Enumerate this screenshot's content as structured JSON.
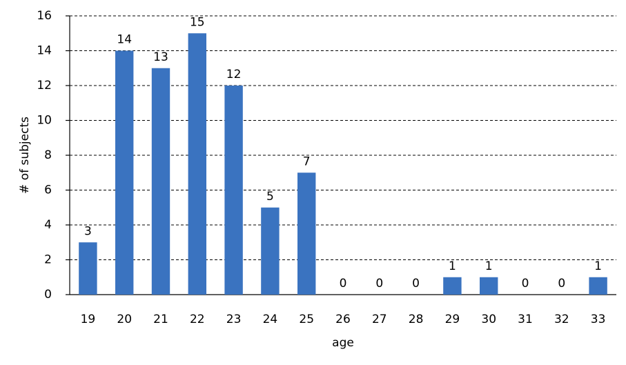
{
  "chart_data": {
    "type": "bar",
    "x_label": "age",
    "y_label": "# of subjects",
    "categories": [
      "19",
      "20",
      "21",
      "22",
      "23",
      "24",
      "25",
      "26",
      "27",
      "28",
      "29",
      "30",
      "31",
      "32",
      "33"
    ],
    "values": [
      3,
      14,
      13,
      15,
      12,
      5,
      7,
      0,
      0,
      0,
      1,
      1,
      0,
      0,
      1
    ],
    "color": "#3a73c0",
    "ylim": [
      0,
      16
    ],
    "yticks": [
      0,
      2,
      4,
      6,
      8,
      10,
      12,
      14,
      16
    ],
    "grid": true
  }
}
